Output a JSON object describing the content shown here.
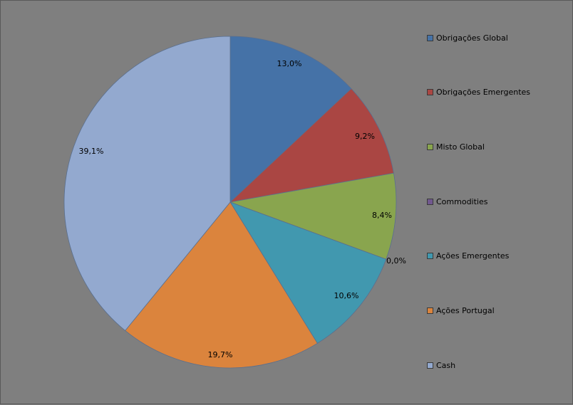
{
  "chart_data": {
    "type": "pie",
    "title": "",
    "legend_position": "right",
    "start_angle_deg": 0,
    "direction": "clockwise",
    "slices": [
      {
        "name": "Obrigações Global",
        "value": 13.0,
        "label": "13,0%",
        "color": "#4572a7"
      },
      {
        "name": "Obrigações Emergentes",
        "value": 9.2,
        "label": "9,2%",
        "color": "#aa4643"
      },
      {
        "name": "Misto Global",
        "value": 8.4,
        "label": "8,4%",
        "color": "#89a54e"
      },
      {
        "name": "Commodities",
        "value": 0.0,
        "label": "0,0%",
        "color": "#71588f"
      },
      {
        "name": "Ações Emergentes",
        "value": 10.6,
        "label": "10,6%",
        "color": "#4198af"
      },
      {
        "name": "Ações Portugal",
        "value": 19.7,
        "label": "19,7%",
        "color": "#db843d"
      },
      {
        "name": "Cash",
        "value": 39.1,
        "label": "39,1%",
        "color": "#93a9cf"
      }
    ]
  }
}
